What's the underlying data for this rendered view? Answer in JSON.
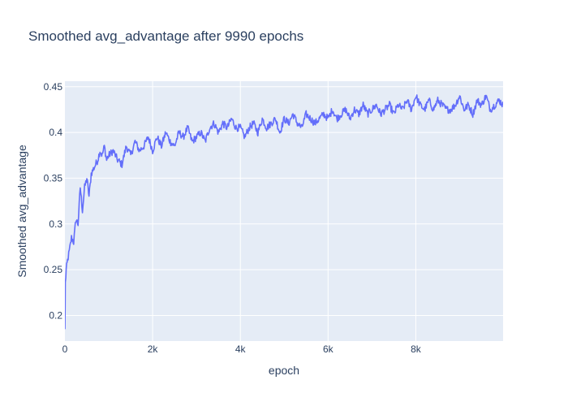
{
  "chart_data": {
    "type": "line",
    "title": "Smoothed avg_advantage after 9990 epochs",
    "xlabel": "epoch",
    "ylabel": "Smoothed avg_advantage",
    "xlim": [
      0,
      9990
    ],
    "ylim": [
      0.172,
      0.456
    ],
    "xticks": [
      0,
      2000,
      4000,
      6000,
      8000
    ],
    "xtick_labels": [
      "0",
      "2k",
      "4k",
      "6k",
      "8k"
    ],
    "yticks": [
      0.2,
      0.25,
      0.3,
      0.35,
      0.4,
      0.45
    ],
    "ytick_labels": [
      "0.2",
      "0.25",
      "0.3",
      "0.35",
      "0.4",
      "0.45"
    ],
    "grid": true,
    "legend": "none",
    "colors": {
      "plot_bg": "#e5ecf6",
      "grid": "#ffffff",
      "line": "#636efa",
      "text": "#2a3f5f"
    },
    "series": [
      {
        "x": [
          0,
          10,
          30,
          60,
          100,
          150,
          200,
          250,
          300,
          350,
          400,
          450,
          500,
          550,
          600,
          650,
          700,
          750,
          800,
          850,
          900,
          950,
          1000,
          1100,
          1200,
          1300,
          1400,
          1500,
          1600,
          1700,
          1800,
          1900,
          2000,
          2100,
          2200,
          2300,
          2400,
          2500,
          2600,
          2700,
          2800,
          2900,
          3000,
          3100,
          3200,
          3300,
          3400,
          3500,
          3600,
          3700,
          3800,
          3900,
          4000,
          4100,
          4200,
          4300,
          4400,
          4500,
          4600,
          4700,
          4800,
          4900,
          5000,
          5100,
          5200,
          5300,
          5400,
          5500,
          5600,
          5700,
          5800,
          5900,
          6000,
          6100,
          6200,
          6300,
          6400,
          6500,
          6600,
          6700,
          6800,
          6900,
          7000,
          7100,
          7200,
          7300,
          7400,
          7500,
          7600,
          7700,
          7800,
          7900,
          8000,
          8100,
          8200,
          8300,
          8400,
          8500,
          8600,
          8700,
          8800,
          8900,
          9000,
          9100,
          9200,
          9300,
          9400,
          9500,
          9600,
          9700,
          9800,
          9900,
          9990
        ],
        "y": [
          0.185,
          0.235,
          0.25,
          0.26,
          0.27,
          0.285,
          0.28,
          0.305,
          0.3,
          0.34,
          0.315,
          0.34,
          0.35,
          0.33,
          0.355,
          0.36,
          0.365,
          0.37,
          0.38,
          0.375,
          0.385,
          0.37,
          0.375,
          0.38,
          0.37,
          0.365,
          0.385,
          0.375,
          0.39,
          0.38,
          0.385,
          0.395,
          0.38,
          0.395,
          0.385,
          0.4,
          0.39,
          0.385,
          0.4,
          0.395,
          0.405,
          0.39,
          0.395,
          0.4,
          0.39,
          0.405,
          0.41,
          0.4,
          0.41,
          0.405,
          0.415,
          0.405,
          0.405,
          0.395,
          0.405,
          0.41,
          0.4,
          0.415,
          0.405,
          0.41,
          0.415,
          0.4,
          0.415,
          0.41,
          0.42,
          0.41,
          0.405,
          0.42,
          0.415,
          0.41,
          0.415,
          0.42,
          0.415,
          0.425,
          0.415,
          0.42,
          0.425,
          0.415,
          0.425,
          0.42,
          0.43,
          0.42,
          0.425,
          0.43,
          0.42,
          0.425,
          0.43,
          0.42,
          0.43,
          0.425,
          0.435,
          0.425,
          0.44,
          0.43,
          0.425,
          0.435,
          0.425,
          0.435,
          0.43,
          0.425,
          0.425,
          0.43,
          0.44,
          0.425,
          0.43,
          0.42,
          0.435,
          0.43,
          0.44,
          0.425,
          0.43,
          0.435,
          0.43
        ]
      }
    ]
  }
}
